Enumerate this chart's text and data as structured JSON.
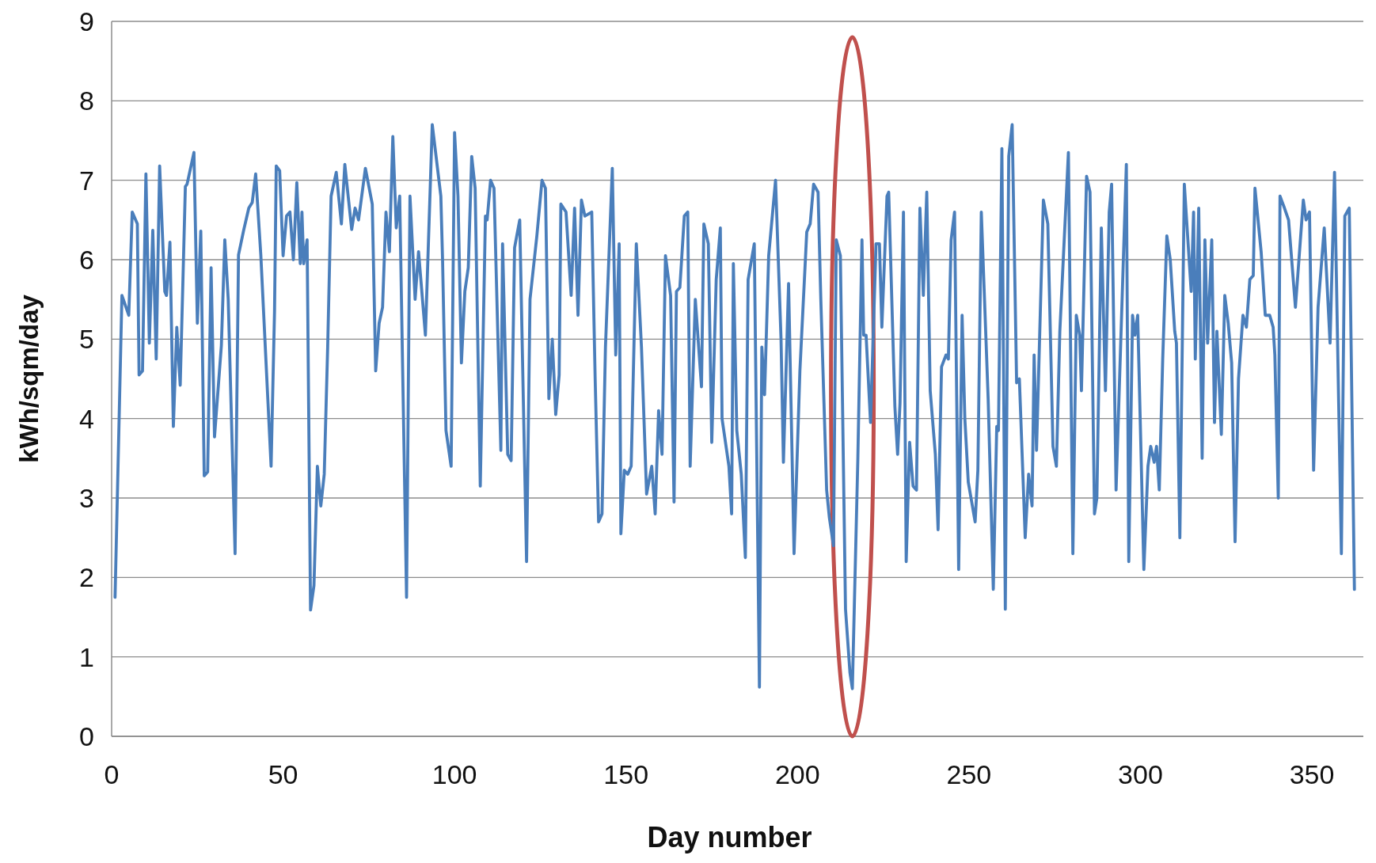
{
  "chart_data": {
    "type": "line",
    "xlabel": "Day number",
    "ylabel": "kWh/sqm/day",
    "xlim": [
      0,
      365
    ],
    "ylim": [
      0,
      9
    ],
    "xticks": [
      0,
      50,
      100,
      150,
      200,
      250,
      300,
      350
    ],
    "yticks": [
      0,
      1,
      2,
      3,
      4,
      5,
      6,
      7,
      8,
      9
    ],
    "grid": "y",
    "marker": "none",
    "line_style": "solid",
    "series": [
      {
        "color": "#4a7ebb",
        "x": [
          1,
          3,
          5,
          6,
          7.5,
          8,
          9,
          10,
          11,
          12,
          13,
          14,
          15.5,
          16,
          17,
          18,
          19,
          20,
          21.5,
          22,
          24,
          25,
          26,
          27,
          28,
          29,
          30,
          32,
          33,
          34,
          36,
          37,
          38.5,
          40,
          41,
          42,
          43.5,
          46.5,
          47.5,
          48,
          49,
          50,
          51,
          52,
          53,
          54,
          55,
          55.5,
          56,
          57,
          58,
          59,
          60,
          61,
          62,
          63,
          64,
          65.5,
          67,
          68,
          70,
          71,
          72,
          74,
          76,
          77,
          78,
          79,
          80,
          81,
          82,
          83,
          84,
          86,
          87,
          88.5,
          89.5,
          91.5,
          93.5,
          96,
          96.5,
          97.5,
          99,
          100,
          101,
          102,
          103,
          104,
          105,
          106,
          107.5,
          109,
          109.5,
          110.5,
          111.5,
          113.5,
          114,
          115.5,
          116.5,
          117.5,
          119,
          121,
          122,
          124,
          125.5,
          126.5,
          127.5,
          128.5,
          129.5,
          130.5,
          131,
          132.5,
          134,
          135,
          136,
          137,
          138,
          140,
          141,
          142,
          143,
          144,
          146,
          147,
          148,
          148.5,
          149.5,
          150.5,
          151.5,
          153,
          154.5,
          156,
          157.5,
          158.5,
          159.5,
          160.5,
          161.5,
          163,
          164,
          164.7,
          165.7,
          167,
          168,
          168.7,
          170.2,
          172,
          172.7,
          174,
          175,
          176.3,
          177.5,
          178,
          179,
          180,
          180.8,
          181.3,
          182.3,
          183.6,
          184.8,
          185.6,
          187.4,
          188.9,
          189.6,
          190.4,
          191.6,
          193.6,
          195.2,
          195.9,
          197.4,
          199,
          200.7,
          202.7,
          203.7,
          204.7,
          206,
          206.8,
          208.5,
          209.3,
          210.5,
          211.3,
          212.5,
          214,
          215.3,
          216,
          217.6,
          218.8,
          219.3,
          220,
          221.3,
          222.9,
          223.9,
          224.6,
          226.1,
          226.6,
          228.4,
          229.2,
          229.9,
          230.9,
          231.7,
          232.7,
          233.7,
          234.7,
          235.7,
          236.7,
          237.7,
          238.7,
          240.2,
          241,
          242,
          243.3,
          244,
          244.8,
          245.8,
          247,
          248,
          248.8,
          249.8,
          250.8,
          251.8,
          252.6,
          253.6,
          255.6,
          257.1,
          258.1,
          258.6,
          259.6,
          260.6,
          261.6,
          262.6,
          263.9,
          264.7,
          266.4,
          267.4,
          268.4,
          269,
          269.7,
          271.7,
          273,
          274.5,
          275.5,
          276.5,
          279,
          280.3,
          281.3,
          282.3,
          282.8,
          284.3,
          285.3,
          286.6,
          287.3,
          288.6,
          289.8,
          290.9,
          291.6,
          292.9,
          295.9,
          296.6,
          297.7,
          298.4,
          299.2,
          301,
          302.2,
          303,
          304,
          304.7,
          305.5,
          306.5,
          307.7,
          308.7,
          310,
          310.5,
          311.5,
          312.8,
          314.8,
          315.5,
          316,
          317,
          318,
          318.8,
          319.6,
          320.8,
          321.6,
          322.3,
          323.6,
          324.6,
          325.6,
          326.6,
          327.6,
          328.6,
          329.9,
          330.9,
          331.9,
          332.9,
          333.4,
          335.2,
          336.4,
          337.7,
          338.7,
          339.2,
          340.2,
          340.7,
          342,
          343.2,
          345.2,
          347.5,
          348.3,
          349.3,
          350.5,
          351.8,
          353.6,
          355.3,
          356.6,
          358.6,
          359.6,
          360.9,
          362.4
        ],
        "values": [
          1.75,
          5.55,
          5.3,
          6.6,
          6.45,
          4.55,
          4.6,
          7.08,
          4.95,
          6.37,
          4.75,
          7.18,
          5.6,
          5.55,
          6.22,
          3.9,
          5.15,
          4.42,
          6.92,
          6.95,
          7.35,
          5.2,
          6.36,
          3.28,
          3.33,
          5.9,
          3.77,
          4.92,
          6.25,
          5.5,
          2.3,
          6.06,
          6.37,
          6.65,
          6.72,
          7.08,
          6.06,
          3.4,
          5.35,
          7.18,
          7.12,
          6.05,
          6.55,
          6.6,
          6.0,
          6.97,
          5.95,
          6.6,
          5.95,
          6.25,
          1.59,
          1.9,
          3.4,
          2.9,
          3.3,
          4.9,
          6.8,
          7.1,
          6.45,
          7.2,
          6.38,
          6.65,
          6.5,
          7.15,
          6.7,
          4.6,
          5.2,
          5.4,
          6.6,
          6.1,
          7.55,
          6.4,
          6.8,
          1.75,
          6.8,
          5.5,
          6.1,
          5.05,
          7.7,
          6.8,
          6.0,
          3.85,
          3.4,
          7.6,
          6.8,
          4.7,
          5.6,
          5.9,
          7.3,
          6.9,
          3.15,
          6.55,
          6.5,
          7.0,
          6.9,
          3.6,
          6.2,
          3.55,
          3.47,
          6.15,
          6.5,
          2.2,
          5.5,
          6.3,
          7.0,
          6.9,
          4.25,
          5.0,
          4.05,
          4.55,
          6.7,
          6.6,
          5.55,
          6.65,
          5.3,
          6.75,
          6.55,
          6.6,
          4.5,
          2.7,
          2.8,
          4.9,
          7.15,
          4.8,
          6.2,
          2.55,
          3.35,
          3.3,
          3.4,
          6.2,
          4.9,
          3.05,
          3.4,
          2.8,
          4.1,
          3.55,
          6.05,
          5.55,
          2.95,
          5.6,
          5.65,
          6.55,
          6.6,
          3.4,
          5.5,
          4.4,
          6.45,
          6.2,
          3.7,
          5.75,
          6.4,
          4.0,
          3.7,
          3.4,
          2.8,
          5.95,
          3.85,
          3.3,
          2.25,
          5.75,
          6.2,
          0.62,
          4.9,
          4.3,
          6.05,
          7.0,
          5.0,
          3.45,
          5.7,
          2.3,
          4.6,
          6.35,
          6.45,
          6.95,
          6.85,
          5.5,
          3.1,
          2.75,
          2.4,
          6.25,
          6.05,
          1.6,
          0.8,
          0.6,
          3.5,
          6.25,
          5.05,
          5.05,
          3.95,
          6.2,
          6.2,
          5.15,
          6.8,
          6.85,
          4.15,
          3.55,
          4.2,
          6.6,
          2.2,
          3.7,
          3.15,
          3.1,
          6.65,
          5.55,
          6.85,
          4.35,
          3.55,
          2.6,
          4.65,
          4.8,
          4.75,
          6.25,
          6.6,
          2.1,
          5.3,
          4.0,
          3.2,
          2.95,
          2.7,
          3.35,
          6.6,
          4.25,
          1.85,
          3.9,
          3.85,
          7.4,
          1.6,
          7.3,
          7.7,
          4.45,
          4.5,
          2.5,
          3.3,
          2.9,
          4.8,
          3.6,
          6.75,
          6.45,
          3.65,
          3.4,
          5.1,
          7.35,
          2.3,
          5.3,
          5.05,
          4.35,
          7.05,
          6.85,
          2.8,
          3.0,
          6.4,
          4.35,
          6.6,
          6.95,
          3.1,
          7.2,
          2.2,
          5.3,
          5.05,
          5.3,
          2.1,
          3.4,
          3.65,
          3.45,
          3.65,
          3.1,
          4.75,
          6.3,
          6.0,
          5.1,
          4.95,
          2.5,
          6.95,
          5.6,
          6.6,
          4.75,
          6.65,
          3.5,
          6.25,
          4.95,
          6.25,
          3.95,
          5.1,
          3.8,
          5.55,
          5.2,
          4.7,
          2.45,
          4.5,
          5.3,
          5.15,
          5.75,
          5.8,
          6.9,
          6.1,
          5.3,
          5.3,
          5.15,
          4.8,
          3.0,
          6.8,
          6.65,
          6.5,
          5.4,
          6.75,
          6.5,
          6.6,
          3.35,
          5.4,
          6.4,
          4.95,
          7.1,
          2.3,
          6.55,
          6.65,
          1.85
        ]
      }
    ]
  }
}
